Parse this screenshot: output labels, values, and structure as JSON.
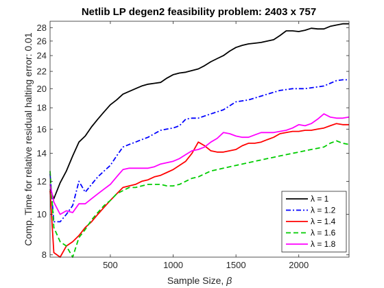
{
  "chart_data": {
    "type": "line",
    "title": "Netlib LP degen2 feasibility problem: 2403 x 757",
    "xlabel": "Sample Size, ",
    "xlabel_symbol": "β",
    "ylabel": "Comp. Time for relative residual halting error: 0.01",
    "xlim": [
      20,
      2400
    ],
    "ylim": [
      7.9,
      29
    ],
    "y_scale": "log",
    "grid": false,
    "legend_position": "bottom-right",
    "x_ticks": [
      500,
      1000,
      1500,
      2000
    ],
    "y_ticks": [
      8,
      10,
      12,
      14,
      16,
      18,
      20,
      22,
      24,
      26,
      28
    ],
    "x": [
      20,
      50,
      100,
      150,
      200,
      250,
      300,
      350,
      400,
      450,
      500,
      550,
      600,
      650,
      700,
      750,
      800,
      850,
      900,
      950,
      1000,
      1050,
      1100,
      1150,
      1200,
      1250,
      1300,
      1350,
      1400,
      1450,
      1500,
      1550,
      1600,
      1650,
      1700,
      1750,
      1800,
      1850,
      1900,
      1950,
      2000,
      2050,
      2100,
      2150,
      2200,
      2250,
      2300,
      2350,
      2400
    ],
    "series": [
      {
        "name": "λ = 1",
        "color": "#000000",
        "dash": "solid",
        "values": [
          11.5,
          10.9,
          11.9,
          12.7,
          13.8,
          14.9,
          15.4,
          16.2,
          16.9,
          17.6,
          18.3,
          18.8,
          19.4,
          19.7,
          20.0,
          20.3,
          20.5,
          20.6,
          20.7,
          21.2,
          21.6,
          21.8,
          21.9,
          22.1,
          22.3,
          22.7,
          23.2,
          23.6,
          24.0,
          24.6,
          25.1,
          25.4,
          25.6,
          25.7,
          25.8,
          26.0,
          26.2,
          26.8,
          27.5,
          27.5,
          27.4,
          27.6,
          27.9,
          27.8,
          27.8,
          28.2,
          28.4,
          28.6,
          28.6
        ]
      },
      {
        "name": "λ = 1.2",
        "color": "#0000ff",
        "dash": "dashdot",
        "values": [
          12.5,
          9.6,
          9.6,
          10.0,
          10.5,
          12.0,
          11.3,
          11.8,
          12.3,
          12.7,
          13.1,
          13.8,
          14.5,
          14.7,
          14.9,
          15.1,
          15.3,
          15.6,
          15.9,
          16.0,
          16.1,
          16.3,
          16.9,
          17.0,
          17.0,
          17.2,
          17.4,
          17.6,
          17.8,
          18.2,
          18.6,
          18.7,
          18.8,
          19.0,
          19.2,
          19.4,
          19.6,
          19.8,
          19.9,
          20.0,
          20.0,
          20.0,
          20.1,
          20.2,
          20.3,
          20.6,
          20.9,
          21.0,
          21.0
        ]
      },
      {
        "name": "λ = 1.4",
        "color": "#ff0000",
        "dash": "solid",
        "values": [
          11.4,
          8.1,
          7.9,
          8.4,
          8.6,
          8.9,
          9.3,
          9.6,
          10.0,
          10.4,
          10.8,
          11.2,
          11.6,
          11.7,
          11.8,
          12.0,
          12.1,
          12.3,
          12.4,
          12.6,
          12.8,
          13.1,
          13.4,
          14.0,
          14.9,
          14.6,
          14.2,
          14.1,
          14.1,
          14.2,
          14.3,
          14.6,
          14.8,
          14.8,
          14.9,
          15.1,
          15.3,
          15.6,
          15.7,
          15.8,
          15.8,
          15.9,
          15.9,
          16.0,
          16.1,
          16.3,
          16.5,
          16.4,
          16.4
        ]
      },
      {
        "name": "λ = 1.6",
        "color": "#00cc00",
        "dash": "dashed",
        "values": [
          12.7,
          9.3,
          8.6,
          8.4,
          7.9,
          8.8,
          9.2,
          9.7,
          10.1,
          10.5,
          10.8,
          11.2,
          11.4,
          11.6,
          11.6,
          11.7,
          11.8,
          11.8,
          11.8,
          11.7,
          11.7,
          11.8,
          12.0,
          12.2,
          12.3,
          12.5,
          12.7,
          12.8,
          12.9,
          13.0,
          13.1,
          13.2,
          13.3,
          13.4,
          13.5,
          13.6,
          13.7,
          13.8,
          13.9,
          14.0,
          14.1,
          14.2,
          14.3,
          14.4,
          14.5,
          14.8,
          15.0,
          14.8,
          14.7
        ]
      },
      {
        "name": "λ = 1.8",
        "color": "#ff00ff",
        "dash": "solid",
        "values": [
          11.8,
          10.7,
          10.0,
          10.2,
          10.1,
          10.6,
          10.6,
          10.9,
          11.2,
          11.5,
          11.8,
          12.3,
          12.8,
          12.9,
          12.9,
          12.9,
          12.9,
          13.0,
          13.2,
          13.3,
          13.4,
          13.6,
          13.9,
          14.2,
          14.3,
          14.5,
          14.9,
          15.2,
          15.7,
          15.6,
          15.4,
          15.3,
          15.3,
          15.5,
          15.7,
          15.7,
          15.7,
          15.8,
          15.9,
          16.1,
          16.4,
          16.3,
          16.5,
          16.9,
          17.4,
          17.1,
          17.0,
          17.0,
          17.1
        ]
      }
    ]
  }
}
